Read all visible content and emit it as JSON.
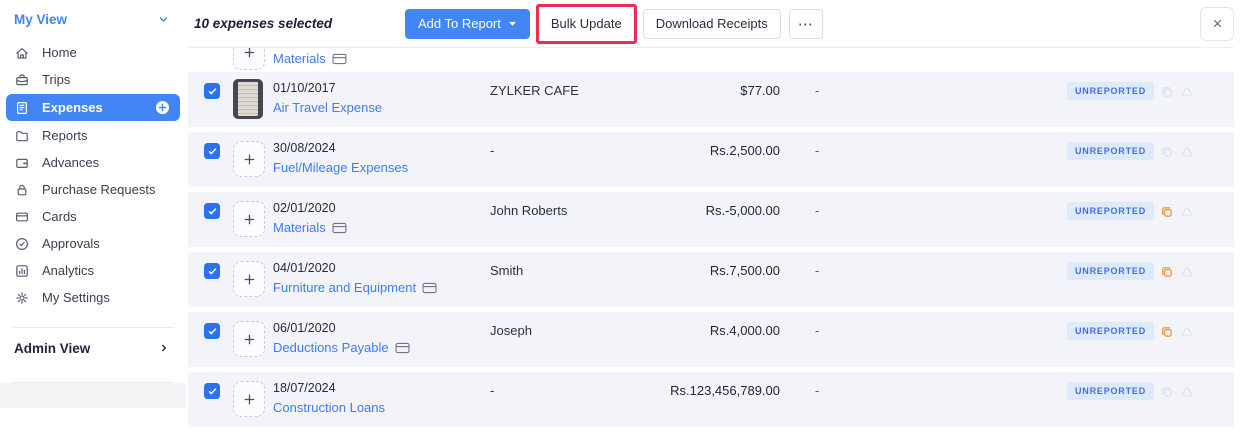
{
  "sidebar": {
    "title": "My View",
    "items": [
      {
        "label": "Home",
        "icon": "home"
      },
      {
        "label": "Trips",
        "icon": "briefcase"
      },
      {
        "label": "Expenses",
        "icon": "receipt",
        "active": true,
        "has_add": true
      },
      {
        "label": "Reports",
        "icon": "folder"
      },
      {
        "label": "Advances",
        "icon": "wallet"
      },
      {
        "label": "Purchase Requests",
        "icon": "lock"
      },
      {
        "label": "Cards",
        "icon": "credit-card"
      },
      {
        "label": "Approvals",
        "icon": "check-circle"
      },
      {
        "label": "Analytics",
        "icon": "chart"
      },
      {
        "label": "My Settings",
        "icon": "gear"
      }
    ],
    "admin_view_label": "Admin View"
  },
  "toolbar": {
    "selection_text": "10 expenses selected",
    "add_to_report_label": "Add To Report",
    "bulk_update_label": "Bulk Update",
    "download_receipts_label": "Download Receipts",
    "more_label": "⋯"
  },
  "partial_row": {
    "category": "Materials",
    "card": true
  },
  "expenses": [
    {
      "date": "01/10/2017",
      "category": "Air Travel Expense",
      "merchant": "ZYLKER CAFE",
      "amount": "$77.00",
      "report": "-",
      "status": "UNREPORTED",
      "thumbnail": "receipt",
      "card": false,
      "duplicate": false
    },
    {
      "date": "30/08/2024",
      "category": "Fuel/Mileage Expenses",
      "merchant": "-",
      "amount": "Rs.2,500.00",
      "report": "-",
      "status": "UNREPORTED",
      "thumbnail": "add",
      "card": false,
      "duplicate": false
    },
    {
      "date": "02/01/2020",
      "category": "Materials",
      "merchant": "John Roberts",
      "amount": "Rs.-5,000.00",
      "report": "-",
      "status": "UNREPORTED",
      "thumbnail": "add",
      "card": true,
      "duplicate": true
    },
    {
      "date": "04/01/2020",
      "category": "Furniture and Equipment",
      "merchant": "Smith",
      "amount": "Rs.7,500.00",
      "report": "-",
      "status": "UNREPORTED",
      "thumbnail": "add",
      "card": true,
      "duplicate": true
    },
    {
      "date": "06/01/2020",
      "category": "Deductions Payable",
      "merchant": "Joseph",
      "amount": "Rs.4,000.00",
      "report": "-",
      "status": "UNREPORTED",
      "thumbnail": "add",
      "card": true,
      "duplicate": true
    },
    {
      "date": "18/07/2024",
      "category": "Construction Loans",
      "merchant": "-",
      "amount": "Rs.123,456,789.00",
      "report": "-",
      "status": "UNREPORTED",
      "thumbnail": "add",
      "card": false,
      "duplicate": false
    }
  ],
  "colors": {
    "accent_blue": "#4285f4",
    "link_blue": "#3f7cf0",
    "annotation_red": "#ed2c55",
    "badge_bg": "#dfe9fc",
    "badge_text": "#3d72dd",
    "duplicate_orange": "#f0993f",
    "row_bg": "#f3f4fa"
  }
}
